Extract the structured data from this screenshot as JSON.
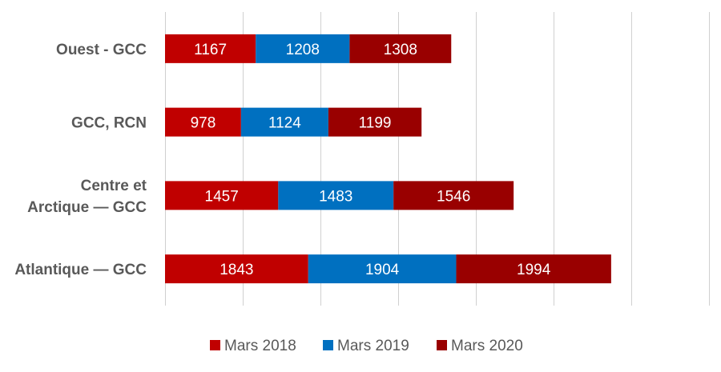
{
  "chart_data": {
    "type": "bar",
    "orientation": "horizontal",
    "stacked": true,
    "title": "",
    "xlabel": "",
    "ylabel": "",
    "categories": [
      "Ouest - GCC",
      "GCC, RCN",
      "Centre et Arctique — GCC",
      "Atlantique — GCC"
    ],
    "category_lines": [
      [
        "Ouest - GCC"
      ],
      [
        "GCC, RCN"
      ],
      [
        "Centre et",
        "Arctique — GCC"
      ],
      [
        "Atlantique — GCC"
      ]
    ],
    "series": [
      {
        "name": "Mars 2018",
        "color": "#c00000",
        "values": [
          1167,
          978,
          1457,
          1843
        ]
      },
      {
        "name": "Mars 2019",
        "color": "#0070c0",
        "values": [
          1208,
          1124,
          1483,
          1904
        ]
      },
      {
        "name": "Mars 2020",
        "color": "#990000",
        "values": [
          1308,
          1199,
          1546,
          1994
        ]
      }
    ],
    "xlim": [
      0,
      7000
    ],
    "x_tick_step": 1000,
    "x_tick_labels_visible": false,
    "grid": "vertical",
    "legend_position": "bottom"
  }
}
